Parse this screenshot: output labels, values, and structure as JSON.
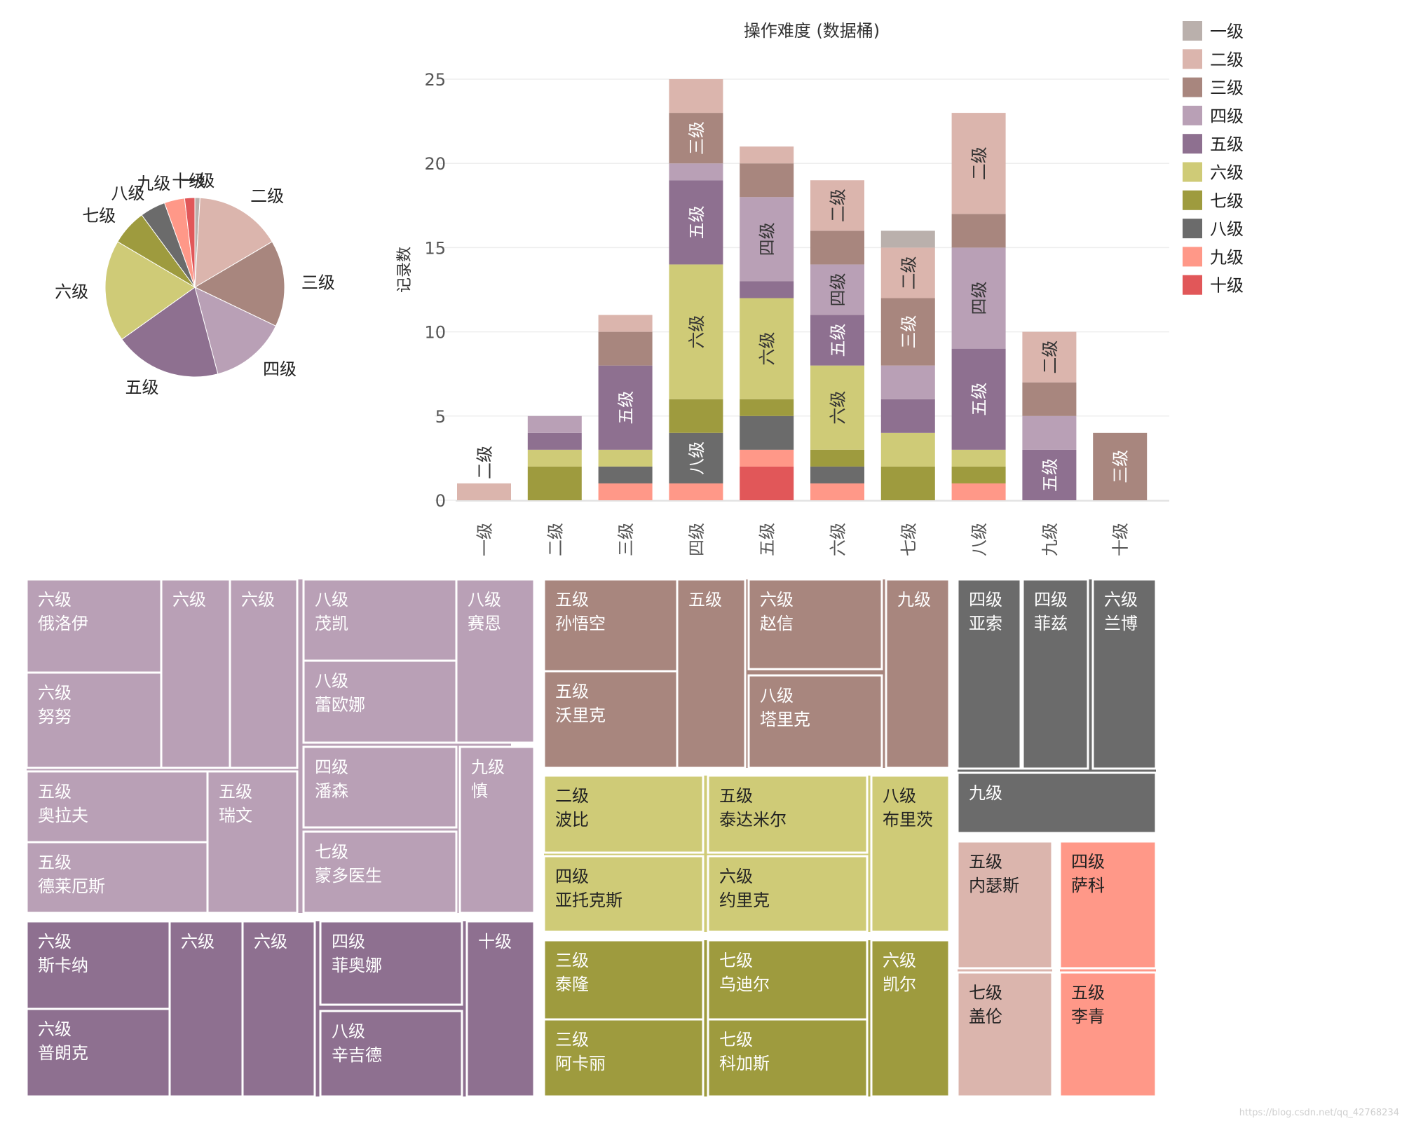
{
  "colors": {
    "一级": "#bab0ac",
    "二级": "#dbb5ad",
    "三级": "#a8867e",
    "四级": "#b9a0b6",
    "五级": "#8e7090",
    "六级": "#cfcb77",
    "七级": "#9e9b3e",
    "八级": "#6b6b6b",
    "九级": "#ff9888",
    "十级": "#e15759"
  },
  "watermark": "https://blog.csdn.net/qq_42768234",
  "chart_data": [
    {
      "type": "pie",
      "slices": [
        {
          "label": "一级",
          "value": 1
        },
        {
          "label": "二级",
          "value": 17
        },
        {
          "label": "三级",
          "value": 17
        },
        {
          "label": "四级",
          "value": 15
        },
        {
          "label": "五级",
          "value": 21
        },
        {
          "label": "六级",
          "value": 20
        },
        {
          "label": "七级",
          "value": 7
        },
        {
          "label": "八级",
          "value": 5
        },
        {
          "label": "九级",
          "value": 4
        },
        {
          "label": "十级",
          "value": 2
        }
      ]
    },
    {
      "type": "bar",
      "title": "操作难度 (数据桶)",
      "ylabel": "记录数",
      "xlabel": "",
      "ylim": [
        0,
        26
      ],
      "yticks": [
        0,
        5,
        10,
        15,
        20,
        25
      ],
      "grid": true,
      "stacked": true,
      "legend": {
        "position": "right",
        "entries": [
          "一级",
          "二级",
          "三级",
          "四级",
          "五级",
          "六级",
          "七级",
          "八级",
          "九级",
          "十级"
        ]
      },
      "categories": [
        "一级",
        "二级",
        "三级",
        "四级",
        "五级",
        "六级",
        "七级",
        "八级",
        "九级",
        "十级"
      ],
      "stack_order": [
        "十级",
        "九级",
        "八级",
        "七级",
        "六级",
        "五级",
        "四级",
        "三级",
        "二级",
        "一级"
      ],
      "series": [
        {
          "name": "一级",
          "values": [
            0,
            0,
            0,
            0,
            0,
            0,
            1,
            0,
            0,
            0
          ]
        },
        {
          "name": "二级",
          "values": [
            1,
            0,
            1,
            2,
            1,
            3,
            3,
            6,
            3,
            0
          ]
        },
        {
          "name": "三级",
          "values": [
            0,
            0,
            2,
            3,
            2,
            2,
            4,
            2,
            2,
            4
          ]
        },
        {
          "name": "四级",
          "values": [
            0,
            1,
            0,
            1,
            5,
            3,
            2,
            6,
            2,
            0
          ]
        },
        {
          "name": "五级",
          "values": [
            0,
            1,
            5,
            5,
            1,
            3,
            2,
            6,
            3,
            0
          ]
        },
        {
          "name": "六级",
          "values": [
            0,
            1,
            1,
            8,
            6,
            5,
            2,
            1,
            0,
            0
          ]
        },
        {
          "name": "七级",
          "values": [
            0,
            2,
            0,
            2,
            1,
            1,
            2,
            1,
            0,
            0
          ]
        },
        {
          "name": "八级",
          "values": [
            0,
            0,
            1,
            3,
            2,
            1,
            0,
            0,
            0,
            0
          ]
        },
        {
          "name": "九级",
          "values": [
            0,
            0,
            1,
            1,
            1,
            1,
            0,
            1,
            0,
            0
          ]
        },
        {
          "name": "十级",
          "values": [
            0,
            0,
            0,
            0,
            2,
            0,
            0,
            0,
            0,
            0
          ]
        }
      ],
      "segment_labels": [
        {
          "category": "一级",
          "series": "二级",
          "text": "二级",
          "outside": true
        },
        {
          "category": "三级",
          "series": "五级",
          "text": "五级"
        },
        {
          "category": "四级",
          "series": "八级",
          "text": "八级"
        },
        {
          "category": "四级",
          "series": "六级",
          "text": "六级"
        },
        {
          "category": "四级",
          "series": "五级",
          "text": "五级"
        },
        {
          "category": "四级",
          "series": "三级",
          "text": "三级"
        },
        {
          "category": "五级",
          "series": "六级",
          "text": "六级"
        },
        {
          "category": "五级",
          "series": "四级",
          "text": "四级"
        },
        {
          "category": "六级",
          "series": "六级",
          "text": "六级"
        },
        {
          "category": "六级",
          "series": "五级",
          "text": "五级"
        },
        {
          "category": "六级",
          "series": "四级",
          "text": "四级"
        },
        {
          "category": "六级",
          "series": "二级",
          "text": "二级"
        },
        {
          "category": "七级",
          "series": "三级",
          "text": "三级"
        },
        {
          "category": "七级",
          "series": "二级",
          "text": "二级"
        },
        {
          "category": "八级",
          "series": "五级",
          "text": "五级"
        },
        {
          "category": "八级",
          "series": "四级",
          "text": "四级"
        },
        {
          "category": "八级",
          "series": "二级",
          "text": "二级"
        },
        {
          "category": "九级",
          "series": "五级",
          "text": "五级"
        },
        {
          "category": "九级",
          "series": "二级",
          "text": "二级"
        },
        {
          "category": "十级",
          "series": "三级",
          "text": "三级"
        }
      ]
    },
    {
      "type": "treemap",
      "groups": [
        {
          "category": "四级",
          "tiles": [
            {
              "label": "六级",
              "name": "俄洛伊"
            },
            {
              "label": "六级",
              "name": "努努"
            },
            {
              "label": "六级",
              "name": ""
            },
            {
              "label": "六级",
              "name": ""
            },
            {
              "label": "五级",
              "name": "奥拉夫"
            },
            {
              "label": "五级",
              "name": "德莱厄斯"
            },
            {
              "label": "五级",
              "name": "瑞文"
            },
            {
              "label": "八级",
              "name": "茂凯"
            },
            {
              "label": "八级",
              "name": "蕾欧娜"
            },
            {
              "label": "八级",
              "name": "赛恩"
            },
            {
              "label": "四级",
              "name": "潘森"
            },
            {
              "label": "七级",
              "name": "蒙多医生"
            },
            {
              "label": "九级",
              "name": "慎"
            }
          ]
        },
        {
          "category": "五级",
          "tiles": [
            {
              "label": "六级",
              "name": "斯卡纳"
            },
            {
              "label": "六级",
              "name": "普朗克"
            },
            {
              "label": "六级",
              "name": ""
            },
            {
              "label": "六级",
              "name": ""
            },
            {
              "label": "四级",
              "name": "菲奥娜"
            },
            {
              "label": "八级",
              "name": "辛吉德"
            },
            {
              "label": "十级",
              "name": ""
            }
          ]
        },
        {
          "category": "三级",
          "tiles": [
            {
              "label": "五级",
              "name": "孙悟空"
            },
            {
              "label": "五级",
              "name": "沃里克"
            },
            {
              "label": "五级",
              "name": ""
            },
            {
              "label": "六级",
              "name": "赵信"
            },
            {
              "label": "八级",
              "name": "塔里克"
            },
            {
              "label": "九级",
              "name": ""
            }
          ]
        },
        {
          "category": "六级",
          "tiles": [
            {
              "label": "二级",
              "name": "波比"
            },
            {
              "label": "四级",
              "name": "亚托克斯"
            },
            {
              "label": "五级",
              "name": "泰达米尔"
            },
            {
              "label": "六级",
              "name": "约里克"
            },
            {
              "label": "八级",
              "name": "布里茨"
            }
          ]
        },
        {
          "category": "七级",
          "tiles": [
            {
              "label": "三级",
              "name": "泰隆"
            },
            {
              "label": "三级",
              "name": "阿卡丽"
            },
            {
              "label": "七级",
              "name": "乌迪尔"
            },
            {
              "label": "七级",
              "name": "科加斯"
            },
            {
              "label": "六级",
              "name": "凯尔"
            }
          ]
        },
        {
          "category": "八级",
          "tiles": [
            {
              "label": "四级",
              "name": "亚索"
            },
            {
              "label": "四级",
              "name": "菲兹"
            },
            {
              "label": "六级",
              "name": "兰博"
            },
            {
              "label": "九级",
              "name": ""
            }
          ]
        },
        {
          "category": "二级",
          "tiles": [
            {
              "label": "五级",
              "name": "内瑟斯"
            },
            {
              "label": "七级",
              "name": "盖伦"
            }
          ]
        },
        {
          "category": "九级",
          "tiles": [
            {
              "label": "四级",
              "name": "萨科"
            },
            {
              "label": "五级",
              "name": "李青"
            }
          ]
        }
      ]
    }
  ]
}
